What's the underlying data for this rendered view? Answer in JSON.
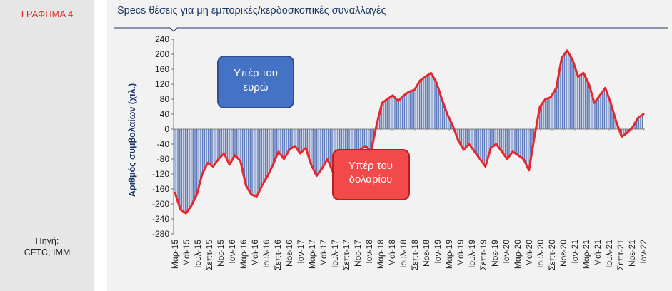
{
  "figure_label": "ΓΡΑΦΗΜΑ 4",
  "source": {
    "line1": "Πηγή:",
    "line2": "CFTC, IMM"
  },
  "colors": {
    "bars": "#3b5fb0",
    "line": "#e8262e",
    "title": "#1f3864",
    "accent": "#e8261c"
  },
  "chart_data": {
    "type": "bar",
    "title": "Specs θέσεις για μη εμπορικές/κερδοσκοπικές συναλλαγές",
    "ylabel": "Αριθμός συμβολαίων (χιλ.)",
    "xlabel": "",
    "ylim": [
      -280,
      240
    ],
    "yticks": [
      240,
      200,
      160,
      120,
      80,
      40,
      0,
      -40,
      -80,
      -120,
      -160,
      -200,
      -240,
      -280
    ],
    "grid": false,
    "x_start": "Μαρ-15",
    "x_ticks": [
      "Μαρ-15",
      "Μαϊ-15",
      "Ιουλ-15",
      "Σεπτ-15",
      "Νοε-15",
      "Ιαν-16",
      "Μαρ-16",
      "Μαϊ-16",
      "Ιουλ-16",
      "Σεπτ-16",
      "Νοε-16",
      "Ιαν-17",
      "Μαρ-17",
      "Μαϊ-17",
      "Ιουλ-17",
      "Σεπτ-17",
      "Νοε-17",
      "Ιαν-18",
      "Μαρ-18",
      "Μαϊ-18",
      "Ιουλ-18",
      "Σεπτ-18",
      "Νοε-18",
      "Ιαν-19",
      "Μαρ-19",
      "Μαϊ-19",
      "Ιουλ-19",
      "Σεπτ-19",
      "Νοε-19",
      "Ιαν-20",
      "Μαρ-20",
      "Μαϊ-20",
      "Ιουλ-20",
      "Σεπτ-20",
      "Νοε-20",
      "Ιαν-21",
      "Μαρ-21",
      "Μαϊ-21",
      "Ιουλ-21",
      "Σεπτ-21",
      "Νοε-21",
      "Ιαν-22"
    ],
    "series": [
      {
        "type": "bar",
        "values": [
          -170,
          -215,
          -225,
          -205,
          -175,
          -120,
          -90,
          -100,
          -80,
          -65,
          -95,
          -70,
          -85,
          -150,
          -175,
          -180,
          -150,
          -125,
          -95,
          -60,
          -80,
          -55,
          -45,
          -65,
          -50,
          -95,
          -125,
          -105,
          -80,
          -115,
          -135,
          -110,
          -90,
          -70,
          -55,
          -45,
          -60,
          10,
          70,
          80,
          90,
          75,
          90,
          100,
          105,
          130,
          140,
          150,
          125,
          80,
          40,
          10,
          -30,
          -55,
          -40,
          -60,
          -80,
          -100,
          -50,
          -40,
          -60,
          -80,
          -60,
          -70,
          -80,
          -110,
          -20,
          60,
          80,
          85,
          110,
          190,
          210,
          185,
          140,
          150,
          120,
          70,
          90,
          110,
          70,
          20,
          -20,
          -10,
          5,
          30,
          40
        ]
      },
      {
        "type": "line",
        "values": [
          -170,
          -215,
          -225,
          -205,
          -175,
          -120,
          -90,
          -100,
          -80,
          -65,
          -95,
          -70,
          -85,
          -150,
          -175,
          -180,
          -150,
          -125,
          -95,
          -60,
          -80,
          -55,
          -45,
          -65,
          -50,
          -95,
          -125,
          -105,
          -80,
          -115,
          -135,
          -110,
          -90,
          -70,
          -55,
          -45,
          -60,
          10,
          70,
          80,
          90,
          75,
          90,
          100,
          105,
          130,
          140,
          150,
          125,
          80,
          40,
          10,
          -30,
          -55,
          -40,
          -60,
          -80,
          -100,
          -50,
          -40,
          -60,
          -80,
          -60,
          -70,
          -80,
          -110,
          -20,
          60,
          80,
          85,
          110,
          190,
          210,
          185,
          140,
          150,
          120,
          70,
          90,
          110,
          70,
          20,
          -20,
          -10,
          5,
          30,
          40
        ]
      }
    ],
    "annotations": [
      {
        "text": "Υπέρ του ευρώ",
        "line1": "Υπέρ του",
        "line2": "ευρώ"
      },
      {
        "text": "Υπέρ του δολαρίου",
        "line1": "Υπέρ του",
        "line2": "δολαρίου"
      }
    ]
  }
}
